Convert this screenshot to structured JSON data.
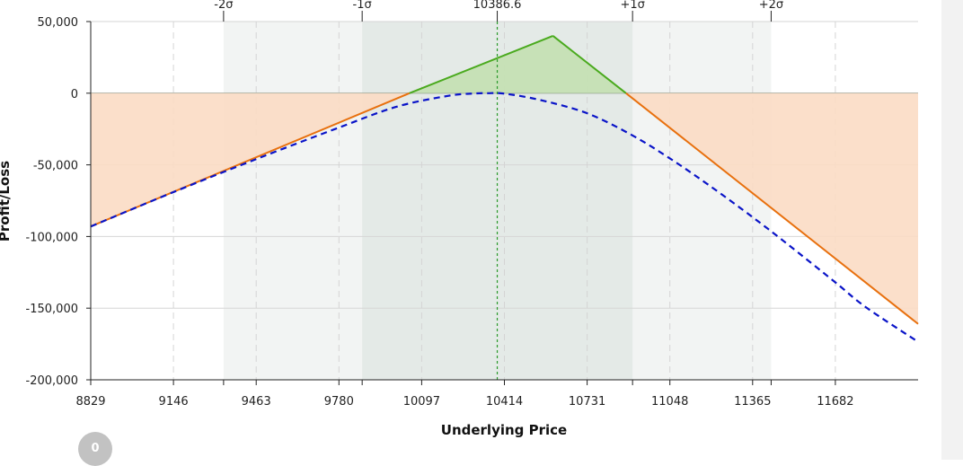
{
  "chart_data": {
    "type": "line",
    "xlabel": "Underlying Price",
    "ylabel": "Profit/Loss",
    "xlim": [
      8829,
      11999
    ],
    "ylim": [
      -200000,
      50000
    ],
    "x_ticks": [
      8829,
      9146,
      9463,
      9780,
      10097,
      10414,
      10731,
      11048,
      11365,
      11682
    ],
    "y_ticks": [
      50000,
      0,
      -50000,
      -100000,
      -150000,
      -200000
    ],
    "y_tick_labels": [
      "50,000",
      "0",
      "-50,000",
      "-100,000",
      "-150,000",
      "-200,000"
    ],
    "current_price": 10386.6,
    "current_price_label": "10386.6",
    "sigma_bands": [
      {
        "label": "-2σ",
        "x": 9338
      },
      {
        "label": "-1σ",
        "x": 9869
      },
      {
        "label": "+1σ",
        "x": 10905
      },
      {
        "label": "+2σ",
        "x": 11436
      }
    ],
    "series": [
      {
        "kind": "expiration",
        "style": "solid",
        "x": [
          8829,
          10050,
          10600,
          10880,
          11999
        ],
        "y": [
          -93000,
          0,
          40000,
          0,
          -161000
        ]
      },
      {
        "kind": "today",
        "style": "dashed",
        "x": [
          8829,
          9146,
          9463,
          9780,
          10000,
          10200,
          10300,
          10350,
          10414,
          10550,
          10731,
          10900,
          11048,
          11200,
          11365,
          11500,
          11682,
          11800,
          11999
        ],
        "y": [
          -93000,
          -69000,
          -46000,
          -24000,
          -9500,
          -1800,
          -200,
          0,
          -300,
          -4700,
          -14000,
          -29000,
          -45500,
          -64500,
          -86500,
          -105500,
          -132000,
          -149500,
          -173500
        ]
      }
    ],
    "colors": {
      "expiration_profit": "#4aaa1e",
      "expiration_loss": "#e8700e",
      "today": "#0a14c8",
      "profit_fill": "#c5e0b4",
      "loss_fill": "#fbdcc4",
      "band_outer": "#f2f4f3",
      "band_inner": "#e4eae7",
      "current_price_line": "#2a9a2a"
    },
    "badge": "0"
  }
}
